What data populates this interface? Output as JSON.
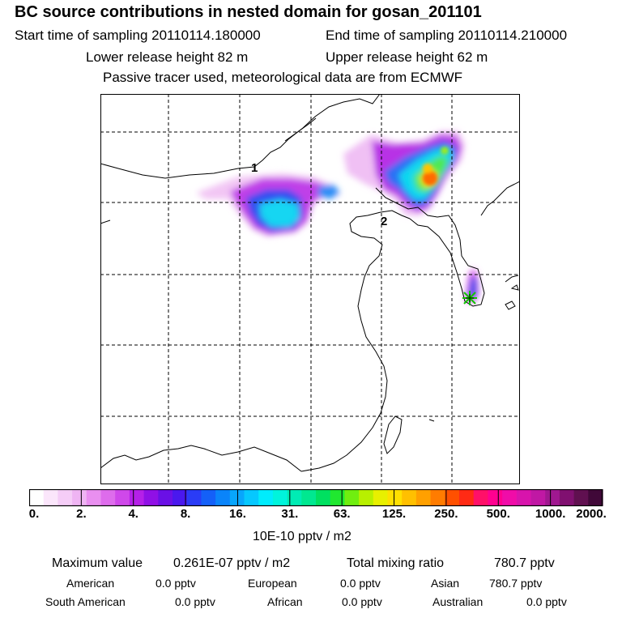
{
  "header": {
    "title": "BC  source contributions in nested domain for gosan_201101",
    "start": "Start time of sampling 20110114.180000",
    "end": "End time of sampling 20110114.210000",
    "lower": "Lower release height   82 m",
    "upper": "Upper release height   62 m",
    "note": "Passive tracer used, meteorological data are from ECMWF"
  },
  "map": {
    "labels": [
      "2",
      "1"
    ],
    "receptor_icon": "star-marker-icon"
  },
  "chart_data": {
    "type": "heatmap",
    "title": "BC  source contributions in nested domain for gosan_201101",
    "colorbar": {
      "ticks": [
        "0.",
        "2.",
        "4.",
        "8.",
        "16.",
        "31.",
        "63.",
        "125.",
        "250.",
        "500.",
        "1000.",
        "2000."
      ],
      "units": "10E-10 pptv / m2",
      "colors": [
        "#ffffff",
        "#fbe6fb",
        "#f5cdf7",
        "#efb4f3",
        "#e98ff0",
        "#de6cec",
        "#cf48ea",
        "#b520e8",
        "#9010e6",
        "#6a10e6",
        "#4a18ee",
        "#2a3cf6",
        "#1460f8",
        "#0a84fa",
        "#08a6fc",
        "#06c8fe",
        "#00ecfc",
        "#00f4dc",
        "#00ecb4",
        "#00e890",
        "#00e060",
        "#20e830",
        "#70ee10",
        "#b8f000",
        "#e8f000",
        "#ffe000",
        "#ffc000",
        "#ffa000",
        "#ff7c00",
        "#ff5000",
        "#ff2a14",
        "#ff1068",
        "#ff0090",
        "#f00ca8",
        "#d814ac",
        "#c018a4",
        "#a01890",
        "#801070",
        "#601050",
        "#400838"
      ]
    },
    "maximum_value": "0.261E-07 pptv / m2",
    "total_mixing_ratio": "780.7 pptv"
  },
  "summary": {
    "max_label": "Maximum value",
    "max_value": "0.261E-07 pptv / m2",
    "total_label": "Total mixing ratio",
    "total_value": "780.7 pptv"
  },
  "regions": [
    {
      "name": "American",
      "value": "0.0 pptv"
    },
    {
      "name": "European",
      "value": "0.0 pptv"
    },
    {
      "name": "Asian",
      "value": "780.7 pptv"
    },
    {
      "name": "South American",
      "value": "0.0 pptv"
    },
    {
      "name": "African",
      "value": "0.0 pptv"
    },
    {
      "name": "Australian",
      "value": "0.0 pptv"
    }
  ]
}
